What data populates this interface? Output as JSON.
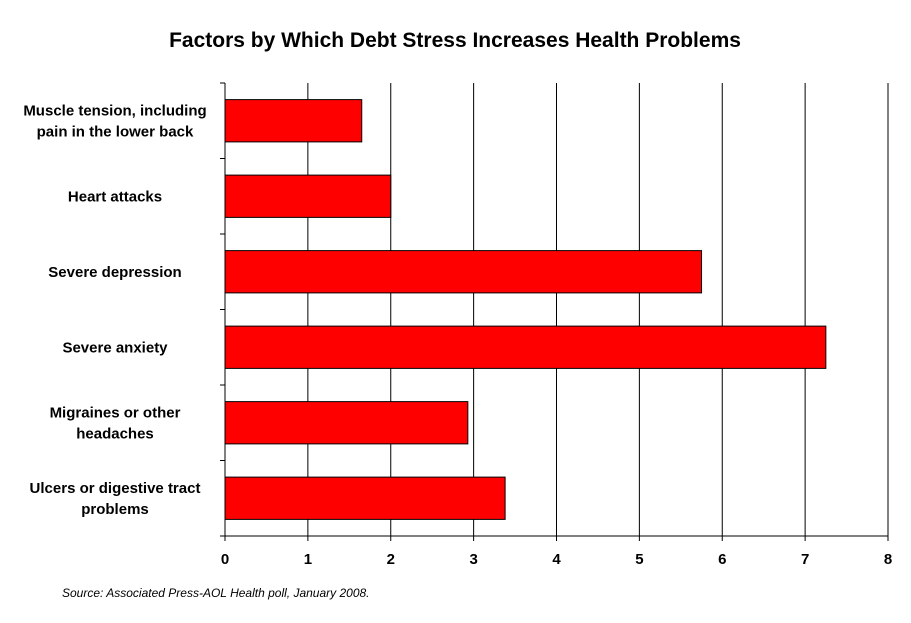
{
  "chart_data": {
    "type": "bar",
    "orientation": "horizontal",
    "title": "Factors by Which Debt Stress Increases Health Problems",
    "categories": [
      [
        "Muscle tension, including",
        "pain in the lower back"
      ],
      [
        "Heart attacks"
      ],
      [
        "Severe depression"
      ],
      [
        "Severe anxiety"
      ],
      [
        "Migraines or other",
        "headaches"
      ],
      [
        "Ulcers or digestive tract",
        "problems"
      ]
    ],
    "values": [
      1.65,
      2.0,
      5.75,
      7.25,
      2.93,
      3.38
    ],
    "xlim": [
      0,
      8
    ],
    "xticks": [
      "0",
      "1",
      "2",
      "3",
      "4",
      "5",
      "6",
      "7",
      "8"
    ],
    "grid": true,
    "bar_color": "#FF0000",
    "legend": "none"
  },
  "source_note": "Source: Associated Press-AOL Health poll, January 2008."
}
